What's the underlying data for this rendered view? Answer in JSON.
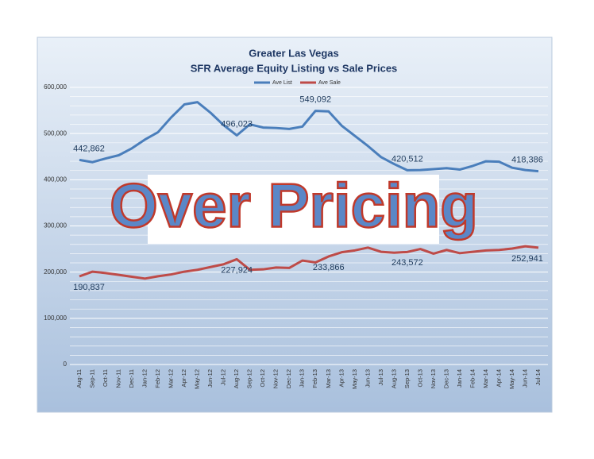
{
  "chart_data": {
    "type": "line",
    "title": "Greater Las Vegas",
    "subtitle": "SFR Average Equity Listing vs Sale Prices",
    "annotation": "Over Pricing",
    "categories": [
      "Aug-11",
      "Sep-11",
      "Oct-11",
      "Nov-11",
      "Dec-11",
      "Jan-12",
      "Feb-12",
      "Mar-12",
      "Apr-12",
      "May-12",
      "Jun-12",
      "Jul-12",
      "Aug-12",
      "Sep-12",
      "Oct-12",
      "Nov-12",
      "Dec-12",
      "Jan-13",
      "Feb-13",
      "Mar-13",
      "Apr-13",
      "May-13",
      "Jun-13",
      "Jul-13",
      "Aug-13",
      "Sep-13",
      "Oct-13",
      "Nov-13",
      "Dec-13",
      "Jan-14",
      "Feb-14",
      "Mar-14",
      "Apr-14",
      "May-14",
      "Jun-14",
      "Jul-14"
    ],
    "series": [
      {
        "name": "Ave List",
        "color": "#4a7ebb",
        "values": [
          442862,
          438000,
          446000,
          453000,
          468000,
          487000,
          503000,
          535000,
          563000,
          568000,
          545000,
          518000,
          496023,
          520000,
          513000,
          512000,
          510000,
          515000,
          549092,
          548000,
          517000,
          495000,
          473000,
          449000,
          434000,
          420512,
          421000,
          423000,
          425000,
          422000,
          430000,
          440000,
          439000,
          426000,
          421000,
          418386
        ],
        "value_labels": [
          "442,862",
          null,
          null,
          null,
          null,
          null,
          null,
          null,
          null,
          null,
          null,
          null,
          "496,023",
          null,
          null,
          null,
          null,
          null,
          "549,092",
          null,
          null,
          null,
          null,
          null,
          null,
          "420,512",
          null,
          null,
          null,
          null,
          null,
          null,
          null,
          null,
          null,
          "418,386"
        ]
      },
      {
        "name": "Ave Sale",
        "color": "#be4b48",
        "values": [
          190837,
          201000,
          198000,
          194000,
          190000,
          186000,
          191000,
          195000,
          201000,
          205000,
          211000,
          217000,
          227924,
          205000,
          206000,
          210000,
          209000,
          225000,
          221000,
          233866,
          243000,
          247000,
          253000,
          244000,
          242000,
          243572,
          250000,
          240000,
          248000,
          241000,
          244000,
          247000,
          248000,
          251000,
          256000,
          252941
        ],
        "value_labels": [
          "190,837",
          null,
          null,
          null,
          null,
          null,
          null,
          null,
          null,
          null,
          null,
          null,
          "227,924",
          null,
          null,
          null,
          null,
          null,
          null,
          "233,866",
          null,
          null,
          null,
          null,
          null,
          "243,572",
          null,
          null,
          null,
          null,
          null,
          null,
          null,
          null,
          null,
          "252,941"
        ]
      }
    ],
    "ylim": [
      0,
      600000
    ],
    "yticks": [
      0,
      {
        "value": 100000,
        "label": "100,000"
      },
      {
        "value": 200000,
        "label": "200,000"
      },
      {
        "value": 300000,
        "label": "300,000"
      },
      {
        "value": 400000,
        "label": "400,000"
      },
      {
        "value": 500000,
        "label": "500,000"
      },
      {
        "value": 600000,
        "label": "600,000"
      }
    ],
    "yminorticks": [
      20000,
      40000,
      60000,
      80000,
      120000,
      140000,
      160000,
      180000,
      220000,
      240000,
      260000,
      280000,
      320000,
      340000,
      360000,
      380000,
      420000,
      440000,
      460000,
      480000,
      520000,
      540000,
      560000,
      580000
    ],
    "grid": true,
    "legend": "top"
  }
}
